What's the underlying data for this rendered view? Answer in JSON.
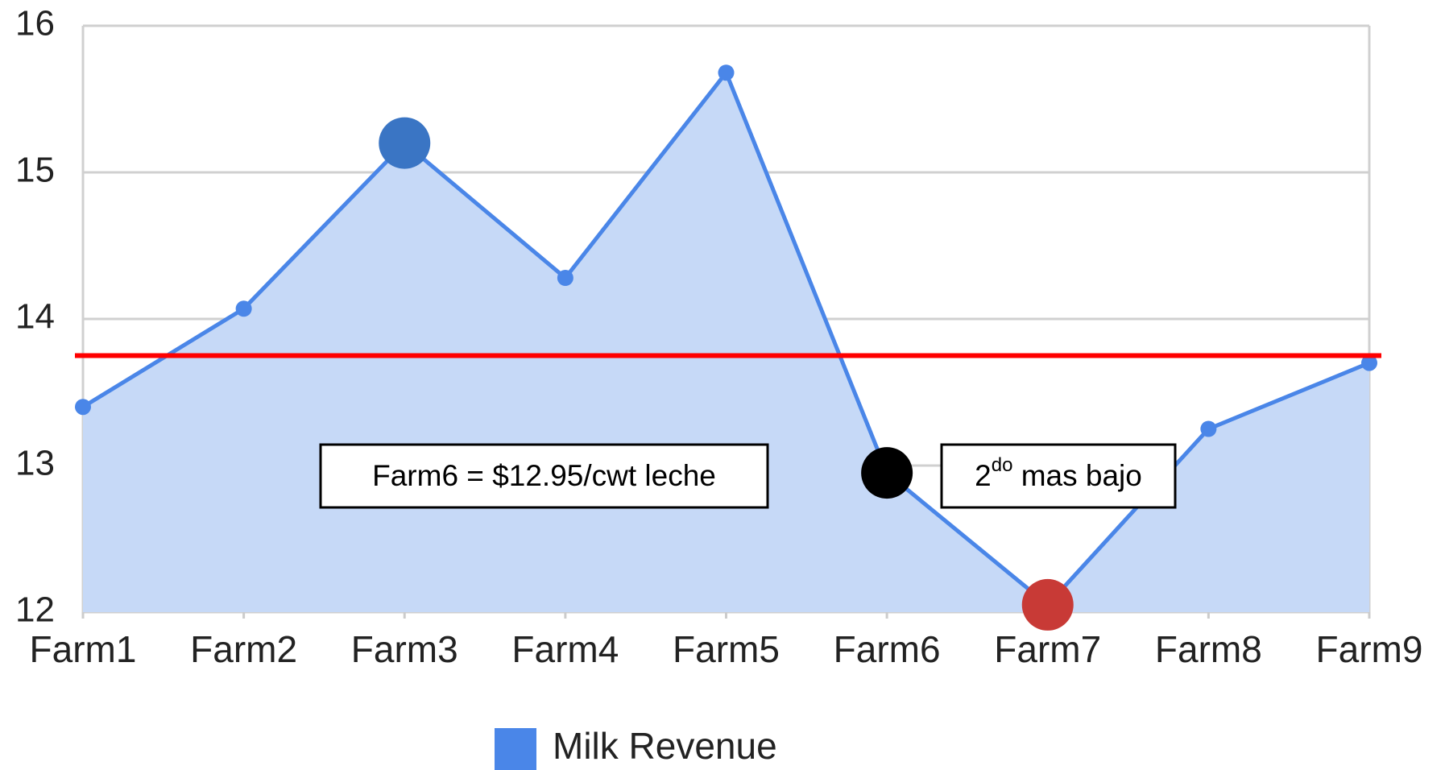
{
  "chart_data": {
    "type": "area",
    "categories": [
      "Farm1",
      "Farm2",
      "Farm3",
      "Farm4",
      "Farm5",
      "Farm6",
      "Farm7",
      "Farm8",
      "Farm9"
    ],
    "series": [
      {
        "name": "Milk Revenue",
        "color": "#4a86e8",
        "fill": "#c6d9f7",
        "values": [
          13.4,
          14.07,
          15.2,
          14.28,
          15.68,
          12.95,
          12.05,
          13.25,
          13.7
        ]
      }
    ],
    "ylim": [
      12,
      16
    ],
    "yticks": [
      12,
      13,
      14,
      15,
      16
    ],
    "grid": true,
    "legend": "bottom",
    "reference_line": {
      "value": 13.75,
      "color": "#ff0000"
    },
    "highlights": [
      {
        "index": 2,
        "color": "#3a75c4"
      },
      {
        "index": 5,
        "color": "#000000"
      },
      {
        "index": 6,
        "color": "#c83a36"
      }
    ],
    "annotations": [
      {
        "text": "Farm6 = $12.95/cwt leche"
      },
      {
        "text": "2",
        "superscript": "do",
        "text_after": " mas bajo"
      }
    ]
  }
}
